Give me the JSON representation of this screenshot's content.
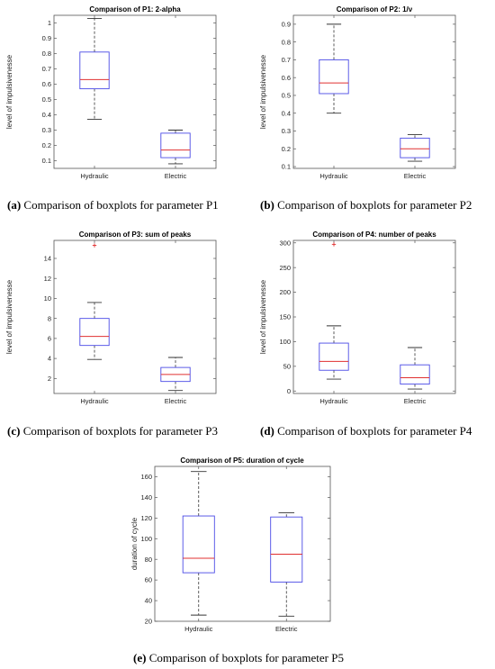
{
  "chart_data": [
    {
      "type": "box",
      "title": "Comparison of P1:  2-alpha",
      "ylabel": "level of impulsivenesse",
      "categories": [
        "Hydraulic",
        "Electric"
      ],
      "ylim": [
        0.05,
        1.05
      ],
      "yticks": [
        0.1,
        0.2,
        0.3,
        0.4,
        0.5,
        0.6,
        0.7,
        0.8,
        0.9,
        1
      ],
      "ytick_labels": [
        "0.1",
        "0.2",
        "0.3",
        "0.4",
        "0.5",
        "0.6",
        "0.7",
        "0.8",
        "0.9",
        "1"
      ],
      "boxes": [
        {
          "whisker_low": 0.37,
          "q1": 0.57,
          "median": 0.63,
          "q3": 0.81,
          "whisker_high": 1.03,
          "outliers": []
        },
        {
          "whisker_low": 0.08,
          "q1": 0.12,
          "median": 0.17,
          "q3": 0.28,
          "whisker_high": 0.3,
          "outliers": []
        }
      ],
      "caption_label": "(a)",
      "caption_text": " Comparison of boxplots for parameter P1"
    },
    {
      "type": "box",
      "title": "Comparison of P2:  1/ν",
      "ylabel": "level of impulsivenesse",
      "categories": [
        "Hydraulic",
        "Electric"
      ],
      "ylim": [
        0.09,
        0.95
      ],
      "yticks": [
        0.1,
        0.2,
        0.3,
        0.4,
        0.5,
        0.6,
        0.7,
        0.8,
        0.9
      ],
      "ytick_labels": [
        "0.1",
        "0.2",
        "0.3",
        "0.4",
        "0.5",
        "0.6",
        "0.7",
        "0.8",
        "0.9"
      ],
      "boxes": [
        {
          "whisker_low": 0.4,
          "q1": 0.51,
          "median": 0.57,
          "q3": 0.7,
          "whisker_high": 0.9,
          "outliers": []
        },
        {
          "whisker_low": 0.13,
          "q1": 0.15,
          "median": 0.2,
          "q3": 0.26,
          "whisker_high": 0.28,
          "outliers": []
        }
      ],
      "caption_label": "(b)",
      "caption_text": " Comparison of boxplots for parameter P2"
    },
    {
      "type": "box",
      "title": "Comparison of P3:  sum of peaks",
      "ylabel": "level of impulsivenesse",
      "categories": [
        "Hydraulic",
        "Electric"
      ],
      "ylim": [
        0.5,
        15.8
      ],
      "yticks": [
        2,
        4,
        6,
        8,
        10,
        12,
        14
      ],
      "ytick_labels": [
        "2",
        "4",
        "6",
        "8",
        "10",
        "12",
        "14"
      ],
      "boxes": [
        {
          "whisker_low": 3.9,
          "q1": 5.3,
          "median": 6.2,
          "q3": 8.0,
          "whisker_high": 9.6,
          "outliers": [
            15.3
          ]
        },
        {
          "whisker_low": 0.8,
          "q1": 1.7,
          "median": 2.4,
          "q3": 3.1,
          "whisker_high": 4.1,
          "outliers": []
        }
      ],
      "caption_label": "(c)",
      "caption_text": " Comparison of boxplots for parameter P3"
    },
    {
      "type": "box",
      "title": "Comparison of P4:  number of peaks",
      "ylabel": "level of impulsivenesse",
      "categories": [
        "Hydraulic",
        "Electric"
      ],
      "ylim": [
        -5,
        305
      ],
      "yticks": [
        0,
        50,
        100,
        150,
        200,
        250,
        300
      ],
      "ytick_labels": [
        "0",
        "50",
        "100",
        "150",
        "200",
        "250",
        "300"
      ],
      "boxes": [
        {
          "whisker_low": 24,
          "q1": 42,
          "median": 60,
          "q3": 97,
          "whisker_high": 132,
          "outliers": [
            297
          ]
        },
        {
          "whisker_low": 4,
          "q1": 14,
          "median": 27,
          "q3": 53,
          "whisker_high": 88,
          "outliers": []
        }
      ],
      "caption_label": "(d)",
      "caption_text": " Comparison of boxplots for parameter P4"
    },
    {
      "type": "box",
      "title": "Comparison of P5:  duration of cycle",
      "ylabel": "duration of cycle",
      "categories": [
        "Hydraulic",
        "Electric"
      ],
      "ylim": [
        20,
        170
      ],
      "yticks": [
        20,
        40,
        60,
        80,
        100,
        120,
        140,
        160
      ],
      "ytick_labels": [
        "20",
        "40",
        "60",
        "80",
        "100",
        "120",
        "140",
        "160"
      ],
      "boxes": [
        {
          "whisker_low": 26,
          "q1": 67,
          "median": 81,
          "q3": 122,
          "whisker_high": 165,
          "outliers": []
        },
        {
          "whisker_low": 25,
          "q1": 58,
          "median": 85,
          "q3": 121,
          "whisker_high": 125,
          "outliers": []
        }
      ],
      "caption_label": "(e)",
      "caption_text": " Comparison of boxplots for parameter P5"
    }
  ]
}
